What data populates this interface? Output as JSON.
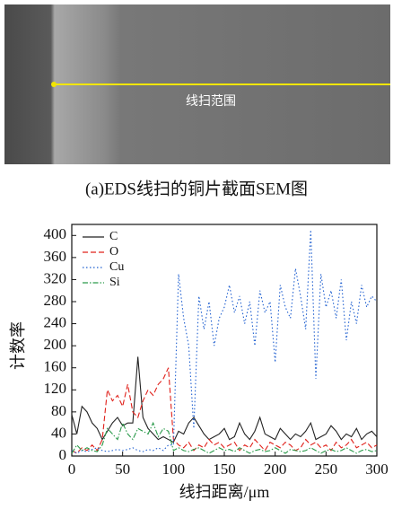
{
  "figure": {
    "image_label": "线扫范围",
    "caption": "(a)EDS线扫的铜片截面SEM图"
  },
  "chart_data": {
    "type": "line",
    "xlabel": "线扫距离/μm",
    "ylabel": "计数率",
    "x": [
      0,
      5,
      10,
      15,
      20,
      25,
      30,
      35,
      40,
      45,
      50,
      55,
      60,
      65,
      70,
      75,
      80,
      85,
      90,
      95,
      100,
      105,
      110,
      115,
      120,
      125,
      130,
      135,
      140,
      145,
      150,
      155,
      160,
      165,
      170,
      175,
      180,
      185,
      190,
      195,
      200,
      205,
      210,
      215,
      220,
      225,
      230,
      235,
      240,
      245,
      250,
      255,
      260,
      265,
      270,
      275,
      280,
      285,
      290,
      295,
      300
    ],
    "series": [
      {
        "name": "C",
        "color": "#222222",
        "dash": "solid",
        "values": [
          75,
          40,
          90,
          80,
          60,
          50,
          30,
          45,
          60,
          70,
          55,
          60,
          60,
          180,
          70,
          50,
          40,
          30,
          35,
          30,
          25,
          45,
          40,
          60,
          70,
          55,
          40,
          30,
          35,
          40,
          50,
          30,
          35,
          60,
          40,
          30,
          45,
          70,
          40,
          35,
          30,
          50,
          40,
          30,
          40,
          35,
          45,
          60,
          30,
          35,
          40,
          55,
          45,
          30,
          40,
          35,
          50,
          30,
          40,
          45,
          35
        ]
      },
      {
        "name": "O",
        "color": "#e0201a",
        "dash": "dashed",
        "values": [
          10,
          5,
          15,
          10,
          20,
          10,
          30,
          120,
          100,
          110,
          90,
          130,
          80,
          70,
          100,
          120,
          110,
          130,
          140,
          160,
          30,
          20,
          15,
          25,
          10,
          20,
          15,
          30,
          20,
          25,
          15,
          20,
          25,
          10,
          20,
          15,
          30,
          20,
          10,
          25,
          20,
          15,
          25,
          20,
          10,
          15,
          30,
          20,
          25,
          15,
          20,
          10,
          25,
          15,
          20,
          30,
          15,
          20,
          25,
          15,
          20
        ]
      },
      {
        "name": "Cu",
        "color": "#1f5fd0",
        "dash": "dotted",
        "values": [
          10,
          5,
          10,
          8,
          12,
          15,
          10,
          8,
          10,
          12,
          10,
          12,
          15,
          10,
          8,
          12,
          10,
          15,
          10,
          20,
          20,
          330,
          250,
          200,
          50,
          290,
          230,
          280,
          200,
          250,
          270,
          310,
          260,
          290,
          240,
          280,
          200,
          300,
          260,
          280,
          170,
          310,
          270,
          250,
          340,
          290,
          230,
          410,
          140,
          330,
          270,
          300,
          250,
          320,
          210,
          280,
          240,
          310,
          270,
          290,
          280
        ]
      },
      {
        "name": "Si",
        "color": "#2a9a4a",
        "dash": "dashdot",
        "values": [
          5,
          20,
          10,
          15,
          10,
          8,
          20,
          50,
          40,
          30,
          60,
          40,
          30,
          50,
          45,
          40,
          60,
          35,
          50,
          45,
          10,
          15,
          10,
          8,
          12,
          15,
          10,
          5,
          10,
          15,
          10,
          12,
          8,
          15,
          10,
          5,
          10,
          12,
          8,
          10,
          15,
          10,
          5,
          12,
          10,
          8,
          10,
          15,
          10,
          5,
          10,
          12,
          8,
          10,
          15,
          10,
          5,
          10,
          12,
          8,
          10
        ]
      }
    ],
    "xlim": [
      0,
      300
    ],
    "xticks": [
      0,
      50,
      100,
      150,
      200,
      250,
      300
    ],
    "ylim": [
      0,
      420
    ],
    "yticks": [
      0,
      40,
      80,
      120,
      160,
      200,
      240,
      280,
      320,
      360,
      400
    ],
    "legend": "upper-left"
  }
}
